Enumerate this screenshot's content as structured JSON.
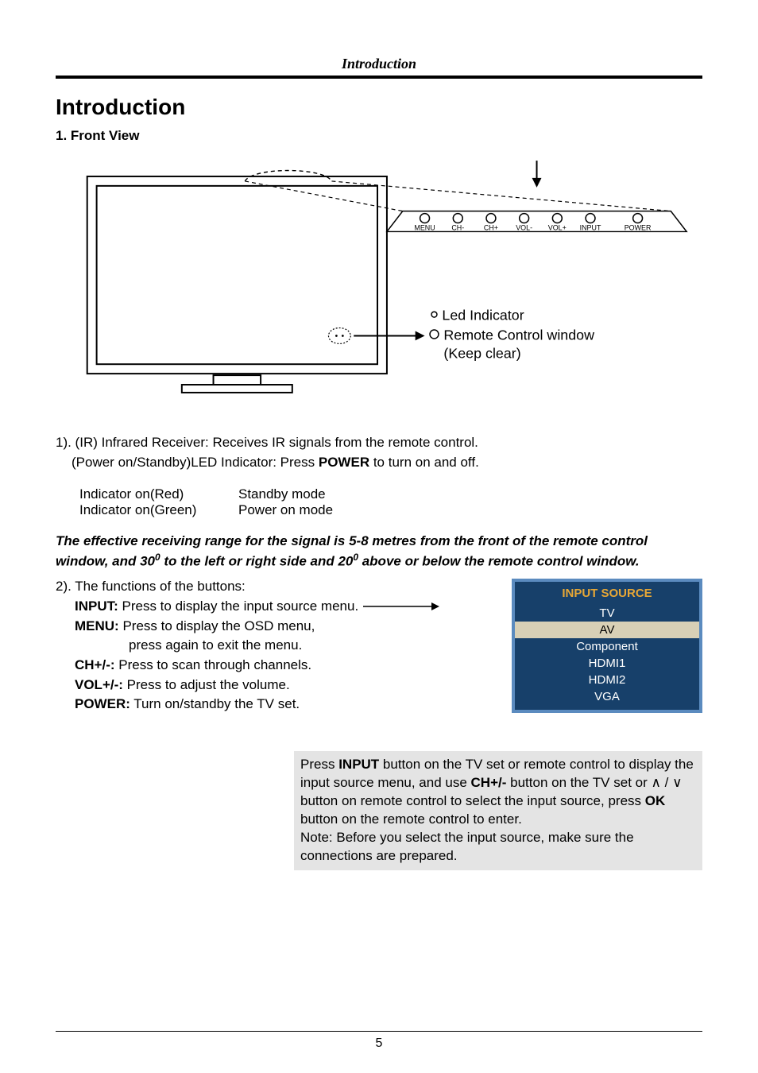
{
  "header": {
    "title": "Introduction"
  },
  "main_title": "Introduction",
  "section1": "1. Front View",
  "diagram": {
    "colors": {
      "line": "#000000"
    },
    "buttons": [
      "MENU",
      "CH-",
      "CH+",
      "VOL-",
      "VOL+",
      "INPUT",
      "POWER"
    ],
    "led_label": "Led Indicator",
    "remote_label1": "Remote Control window",
    "remote_label2": "(Keep clear)"
  },
  "ir_para_1": "1). (IR) Infrared Receiver: Receives IR signals from the remote control.",
  "ir_para_2_head": "(Power on/Standby)LED Indicator: Press ",
  "ir_para_2_bold": "POWER",
  "ir_para_2_tail": " to turn on and off.",
  "indicators": [
    {
      "state": "Indicator on(Red)",
      "mode": "Standby mode"
    },
    {
      "state": "Indicator on(Green)",
      "mode": "Power on mode"
    }
  ],
  "range_note": {
    "p1": "The effective receiving range for the signal is 5-8 metres from the front of the remote control window, and 30",
    "sup1": "0",
    "p2": " to the left or right side and 20",
    "sup2": "0",
    "p3": " above or below the remote control window."
  },
  "functions": {
    "intro": "2). The functions of the buttons:",
    "input_label": "INPUT:",
    "input_text": " Press to display the input source menu.",
    "menu_label": "MENU:",
    "menu_text1": " Press to display the OSD menu,",
    "menu_text2": "press again to exit the menu.",
    "ch_label": "CH+/-:",
    "ch_text": " Press to scan through channels.",
    "vol_label": "VOL+/-:",
    "vol_text": " Press to adjust the volume.",
    "power_label": "POWER:",
    "power_text": " Turn on/standby the TV set."
  },
  "input_source": {
    "title": "INPUT SOURCE",
    "items": [
      "TV",
      "AV",
      "Component",
      "HDMI1",
      "HDMI2",
      "VGA"
    ],
    "selected_index": 1,
    "colors": {
      "border": "#5b8bbf",
      "bg": "#17406a",
      "title": "#e7a736",
      "selected_bg": "#d8d0b6",
      "text": "#ffffff"
    }
  },
  "gray_para": {
    "t1": "Press ",
    "b1": "INPUT",
    "t2": " button on the TV set or remote control to display the input source menu, and use ",
    "b2": "CH+/-",
    "t3": " button on the TV set or ",
    "up": "∧",
    "slash": " / ",
    "down": "∨",
    "t4": " button on remote control to select the input source, press ",
    "b3": "OK",
    "t5": " button on the remote control to enter.",
    "note": "Note: Before you select the input source, make sure the connections are prepared."
  },
  "page_number": "5"
}
